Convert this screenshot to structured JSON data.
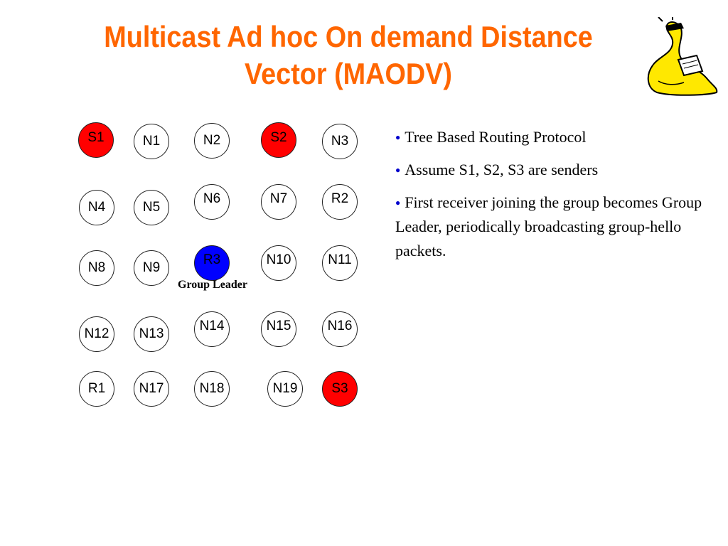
{
  "slide": {
    "title": "Multicast Ad hoc On demand Distance Vector (MAODV)",
    "group_leader_label": "Group Leader",
    "colors": {
      "title": "#ff6600",
      "sender": "#ff0000",
      "leader": "#0000ff",
      "bullet": "#0000cc"
    }
  },
  "nodes": [
    {
      "id": "S1",
      "role": "sender"
    },
    {
      "id": "N1",
      "role": "node"
    },
    {
      "id": "N2",
      "role": "node"
    },
    {
      "id": "S2",
      "role": "sender"
    },
    {
      "id": "N3",
      "role": "node"
    },
    {
      "id": "N4",
      "role": "node"
    },
    {
      "id": "N5",
      "role": "node"
    },
    {
      "id": "N6",
      "role": "node"
    },
    {
      "id": "N7",
      "role": "node"
    },
    {
      "id": "R2",
      "role": "node"
    },
    {
      "id": "N8",
      "role": "node"
    },
    {
      "id": "N9",
      "role": "node"
    },
    {
      "id": "R3",
      "role": "leader"
    },
    {
      "id": "N10",
      "role": "node"
    },
    {
      "id": "N11",
      "role": "node"
    },
    {
      "id": "N12",
      "role": "node"
    },
    {
      "id": "N13",
      "role": "node"
    },
    {
      "id": "N14",
      "role": "node"
    },
    {
      "id": "N15",
      "role": "node"
    },
    {
      "id": "N16",
      "role": "node"
    },
    {
      "id": "R1",
      "role": "node"
    },
    {
      "id": "N17",
      "role": "node"
    },
    {
      "id": "N18",
      "role": "node"
    },
    {
      "id": "N19",
      "role": "node"
    },
    {
      "id": "S3",
      "role": "sender"
    }
  ],
  "bullets": [
    {
      "text": "Tree Based Routing Protocol",
      "icon": "bullet-dot-icon"
    },
    {
      "text": "Assume S1, S2, S3 are senders",
      "icon": "bullet-dot-icon"
    },
    {
      "text": "First receiver joining the group becomes Group Leader, periodically broadcasting group-hello packets.",
      "icon": "bullet-dot-icon"
    }
  ]
}
